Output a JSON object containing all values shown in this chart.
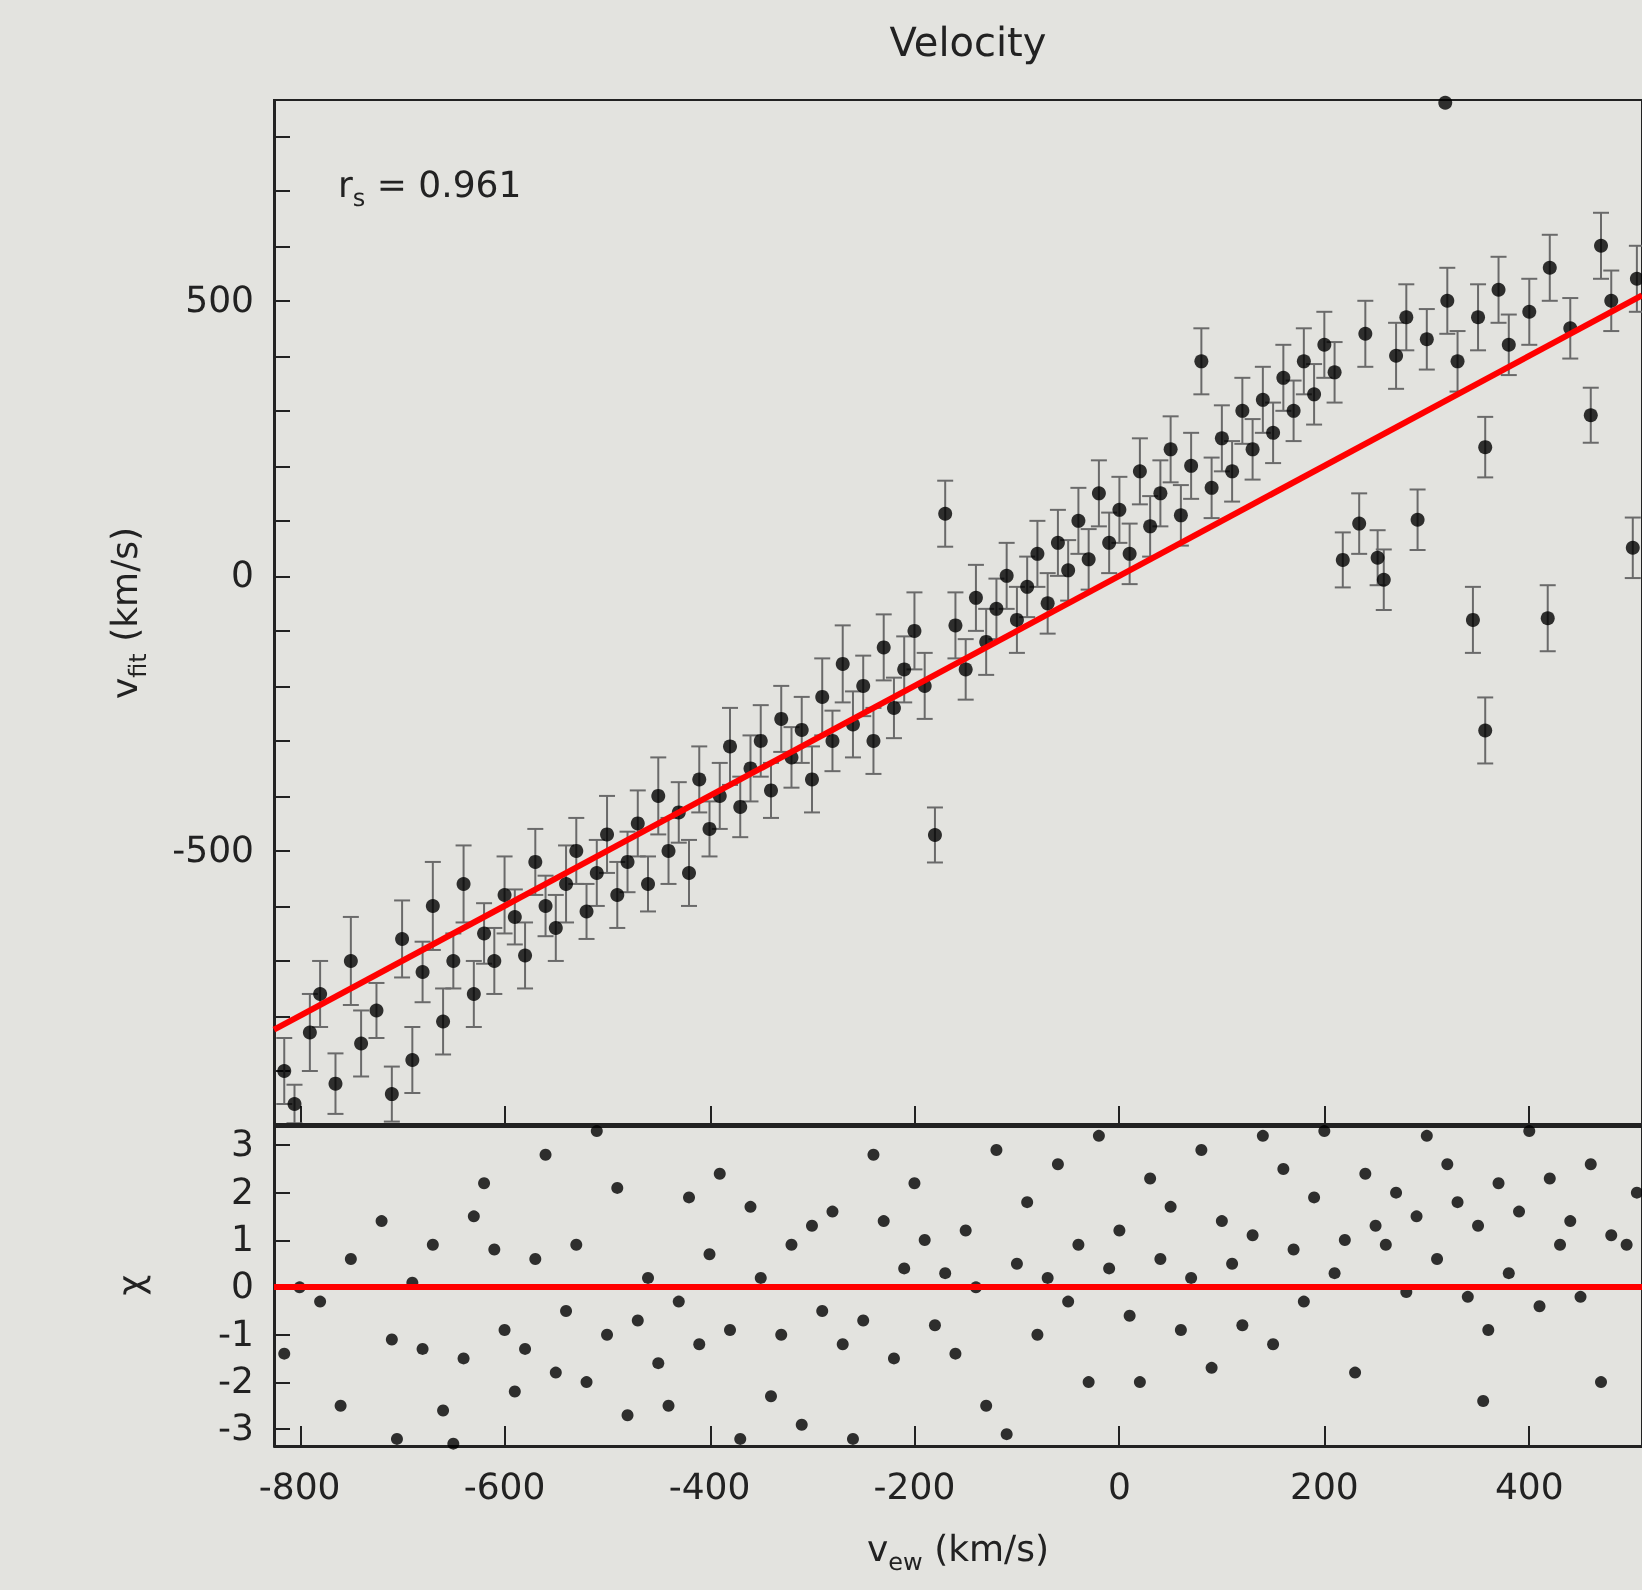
{
  "chart_data": [
    {
      "type": "scatter",
      "title": "Velocity",
      "ylabel": "v$_{fit}$ (km/s)",
      "annotations": [
        "r$_{s}$ = 0.961"
      ],
      "xlim": [
        -825,
        510
      ],
      "xticks": [
        -800,
        -600,
        -400,
        -200,
        0,
        200,
        400
      ],
      "ylim": [
        -1000,
        865
      ],
      "yticks": [
        {
          "value": -900,
          "label": null
        },
        {
          "value": -800,
          "label": null
        },
        {
          "value": -700,
          "label": null
        },
        {
          "value": -600,
          "label": null
        },
        -500,
        {
          "value": -400,
          "label": null
        },
        {
          "value": -300,
          "label": null
        },
        {
          "value": -200,
          "label": null
        },
        {
          "value": -100,
          "label": null
        },
        0,
        {
          "value": 100,
          "label": null
        },
        {
          "value": 200,
          "label": null
        },
        {
          "value": 300,
          "label": null
        },
        {
          "value": 400,
          "label": null
        },
        500,
        {
          "value": 600,
          "label": null
        },
        {
          "value": 700,
          "label": null
        },
        {
          "value": 800,
          "label": null
        }
      ],
      "tick_labels": "y",
      "grid": false,
      "marker": "circle",
      "series": [
        {
          "type": "scatter",
          "color": "#000000",
          "x": [
            -815,
            -805,
            -790,
            -780,
            -765,
            -750,
            -740,
            -725,
            -710,
            -700,
            -690,
            -680,
            -670,
            -660,
            -650,
            -640,
            -630,
            -620,
            -610,
            -600,
            -590,
            -580,
            -570,
            -560,
            -550,
            -540,
            -530,
            -520,
            -510,
            -500,
            -490,
            -480,
            -470,
            -460,
            -450,
            -440,
            -430,
            -420,
            -410,
            -400,
            -390,
            -380,
            -370,
            -360,
            -350,
            -340,
            -330,
            -320,
            -310,
            -300,
            -290,
            -280,
            -270,
            -260,
            -250,
            -240,
            -230,
            -220,
            -210,
            -200,
            -190,
            -180,
            -170,
            -160,
            -150,
            -140,
            -130,
            -120,
            -110,
            -100,
            -90,
            -80,
            -70,
            -60,
            -50,
            -40,
            -30,
            -20,
            -10,
            0,
            10,
            20,
            30,
            40,
            50,
            60,
            70,
            80,
            90,
            100,
            110,
            120,
            130,
            140,
            150,
            160,
            170,
            180,
            190,
            200,
            210,
            218,
            234,
            240,
            252,
            258,
            270,
            280,
            291,
            300,
            318,
            320,
            330,
            345,
            350,
            357,
            357,
            370,
            380,
            400,
            418,
            420,
            440,
            460,
            470,
            480,
            501,
            505
          ],
          "values": [
            -900,
            -960,
            -830,
            -760,
            -923,
            -700,
            -850,
            -790,
            -942,
            -660,
            -880,
            -720,
            -600,
            -810,
            -700,
            -560,
            -760,
            -650,
            -700,
            -580,
            -620,
            -690,
            -520,
            -600,
            -640,
            -560,
            -500,
            -610,
            -540,
            -470,
            -580,
            -520,
            -450,
            -560,
            -400,
            -500,
            -430,
            -540,
            -370,
            -460,
            -400,
            -310,
            -420,
            -350,
            -300,
            -390,
            -260,
            -330,
            -280,
            -370,
            -220,
            -300,
            -160,
            -270,
            -200,
            -300,
            -130,
            -240,
            -170,
            -100,
            -200,
            -471,
            113,
            -90,
            -170,
            -40,
            -120,
            -60,
            0,
            -80,
            -20,
            40,
            -50,
            60,
            10,
            100,
            30,
            150,
            60,
            120,
            40,
            190,
            90,
            150,
            230,
            110,
            200,
            390,
            160,
            250,
            190,
            300,
            230,
            320,
            260,
            360,
            300,
            390,
            330,
            420,
            370,
            29,
            95,
            440,
            33,
            -7,
            400,
            470,
            102,
            430,
            860,
            500,
            390,
            -80,
            470,
            234,
            -281,
            520,
            420,
            480,
            -77,
            560,
            450,
            292,
            600,
            500,
            51,
            540
          ],
          "errors": [
            60,
            35,
            70,
            60,
            55,
            80,
            60,
            50,
            50,
            70,
            60,
            55,
            80,
            60,
            50,
            70,
            60,
            55,
            60,
            70,
            50,
            60,
            60,
            55,
            60,
            70,
            60,
            50,
            60,
            70,
            60,
            55,
            60,
            50,
            70,
            60,
            55,
            60,
            60,
            50,
            60,
            70,
            55,
            60,
            65,
            50,
            60,
            55,
            60,
            60,
            70,
            55,
            70,
            60,
            55,
            60,
            60,
            55,
            60,
            70,
            60,
            50,
            60,
            60,
            55,
            60,
            60,
            55,
            60,
            60,
            55,
            60,
            55,
            60,
            55,
            60,
            55,
            60,
            55,
            60,
            55,
            60,
            55,
            60,
            60,
            55,
            60,
            60,
            55,
            60,
            55,
            60,
            55,
            60,
            55,
            60,
            55,
            60,
            55,
            60,
            55,
            50,
            55,
            60,
            50,
            55,
            60,
            60,
            55,
            55,
            null,
            60,
            55,
            60,
            60,
            55,
            60,
            60,
            55,
            60,
            60,
            60,
            55,
            50,
            60,
            55,
            55,
            60
          ]
        },
        {
          "type": "line",
          "color": "#ff0000",
          "marker": "none",
          "x": [
            -825,
            510
          ],
          "values": [
            -825,
            510
          ]
        }
      ]
    },
    {
      "type": "scatter",
      "xlabel": "v$_{ew}$ (km/s)",
      "ylabel": "χ",
      "xlim": [
        -825,
        510
      ],
      "xticks": [
        -800,
        -600,
        -400,
        -200,
        0,
        200,
        400
      ],
      "ylim": [
        -3.35,
        3.45
      ],
      "yticks": [
        -3,
        -2,
        -1,
        0,
        1,
        2,
        3
      ],
      "grid": false,
      "marker": "circle",
      "ref_lines": [
        {
          "axis": "y",
          "value": 0,
          "color": "#ff0000"
        }
      ],
      "series": [
        {
          "color": "#000000",
          "x": [
            -815,
            -800,
            -780,
            -760,
            -750,
            -720,
            -710,
            -705,
            -690,
            -680,
            -670,
            -660,
            -650,
            -640,
            -630,
            -620,
            -610,
            -600,
            -590,
            -580,
            -570,
            -560,
            -550,
            -540,
            -530,
            -520,
            -510,
            -500,
            -490,
            -480,
            -470,
            -460,
            -450,
            -440,
            -430,
            -420,
            -410,
            -400,
            -390,
            -380,
            -370,
            -360,
            -350,
            -340,
            -330,
            -320,
            -310,
            -300,
            -290,
            -280,
            -270,
            -260,
            -250,
            -240,
            -230,
            -220,
            -210,
            -200,
            -190,
            -180,
            -170,
            -160,
            -150,
            -140,
            -130,
            -120,
            -110,
            -100,
            -90,
            -80,
            -70,
            -60,
            -50,
            -40,
            -30,
            -20,
            -10,
            0,
            10,
            20,
            30,
            40,
            50,
            60,
            70,
            80,
            90,
            100,
            110,
            120,
            130,
            140,
            150,
            160,
            170,
            180,
            190,
            200,
            210,
            220,
            230,
            240,
            250,
            260,
            270,
            280,
            290,
            300,
            310,
            320,
            330,
            340,
            350,
            355,
            360,
            370,
            380,
            390,
            400,
            410,
            420,
            430,
            440,
            450,
            460,
            470,
            480,
            495,
            505
          ],
          "values": [
            -1.4,
            0,
            -0.3,
            -2.5,
            0.6,
            1.4,
            -1.1,
            -3.2,
            0.1,
            -1.3,
            0.9,
            -2.6,
            -3.3,
            -1.5,
            1.5,
            2.2,
            0.8,
            -0.9,
            -2.2,
            -1.3,
            0.6,
            2.8,
            -1.8,
            -0.5,
            0.9,
            -2.0,
            3.3,
            -1.0,
            2.1,
            -2.7,
            -0.7,
            0.2,
            -1.6,
            -2.5,
            -0.3,
            1.9,
            -1.2,
            0.7,
            2.4,
            -0.9,
            -3.2,
            1.7,
            0.2,
            -2.3,
            -1.0,
            0.9,
            -2.9,
            1.3,
            -0.5,
            1.6,
            -1.2,
            -3.2,
            -0.7,
            2.8,
            1.4,
            -1.5,
            0.4,
            2.2,
            1.0,
            -0.8,
            0.3,
            -1.4,
            1.2,
            0.0,
            -2.5,
            2.9,
            -3.1,
            0.5,
            1.8,
            -1.0,
            0.2,
            2.6,
            -0.3,
            0.9,
            -2.0,
            3.2,
            0.4,
            1.2,
            -0.6,
            -2.0,
            2.3,
            0.6,
            1.7,
            -0.9,
            0.2,
            2.9,
            -1.7,
            1.4,
            0.5,
            -0.8,
            1.1,
            3.2,
            -1.2,
            2.5,
            0.8,
            -0.3,
            1.9,
            3.3,
            0.3,
            1.0,
            -1.8,
            2.4,
            1.3,
            0.9,
            2.0,
            -0.1,
            1.5,
            3.2,
            0.6,
            2.6,
            1.8,
            -0.2,
            1.3,
            -2.4,
            -0.9,
            2.2,
            0.3,
            1.6,
            3.3,
            -0.4,
            2.3,
            0.9,
            1.4,
            -0.2,
            2.6,
            -2.0,
            1.1,
            0.9,
            2.0
          ]
        }
      ]
    }
  ]
}
